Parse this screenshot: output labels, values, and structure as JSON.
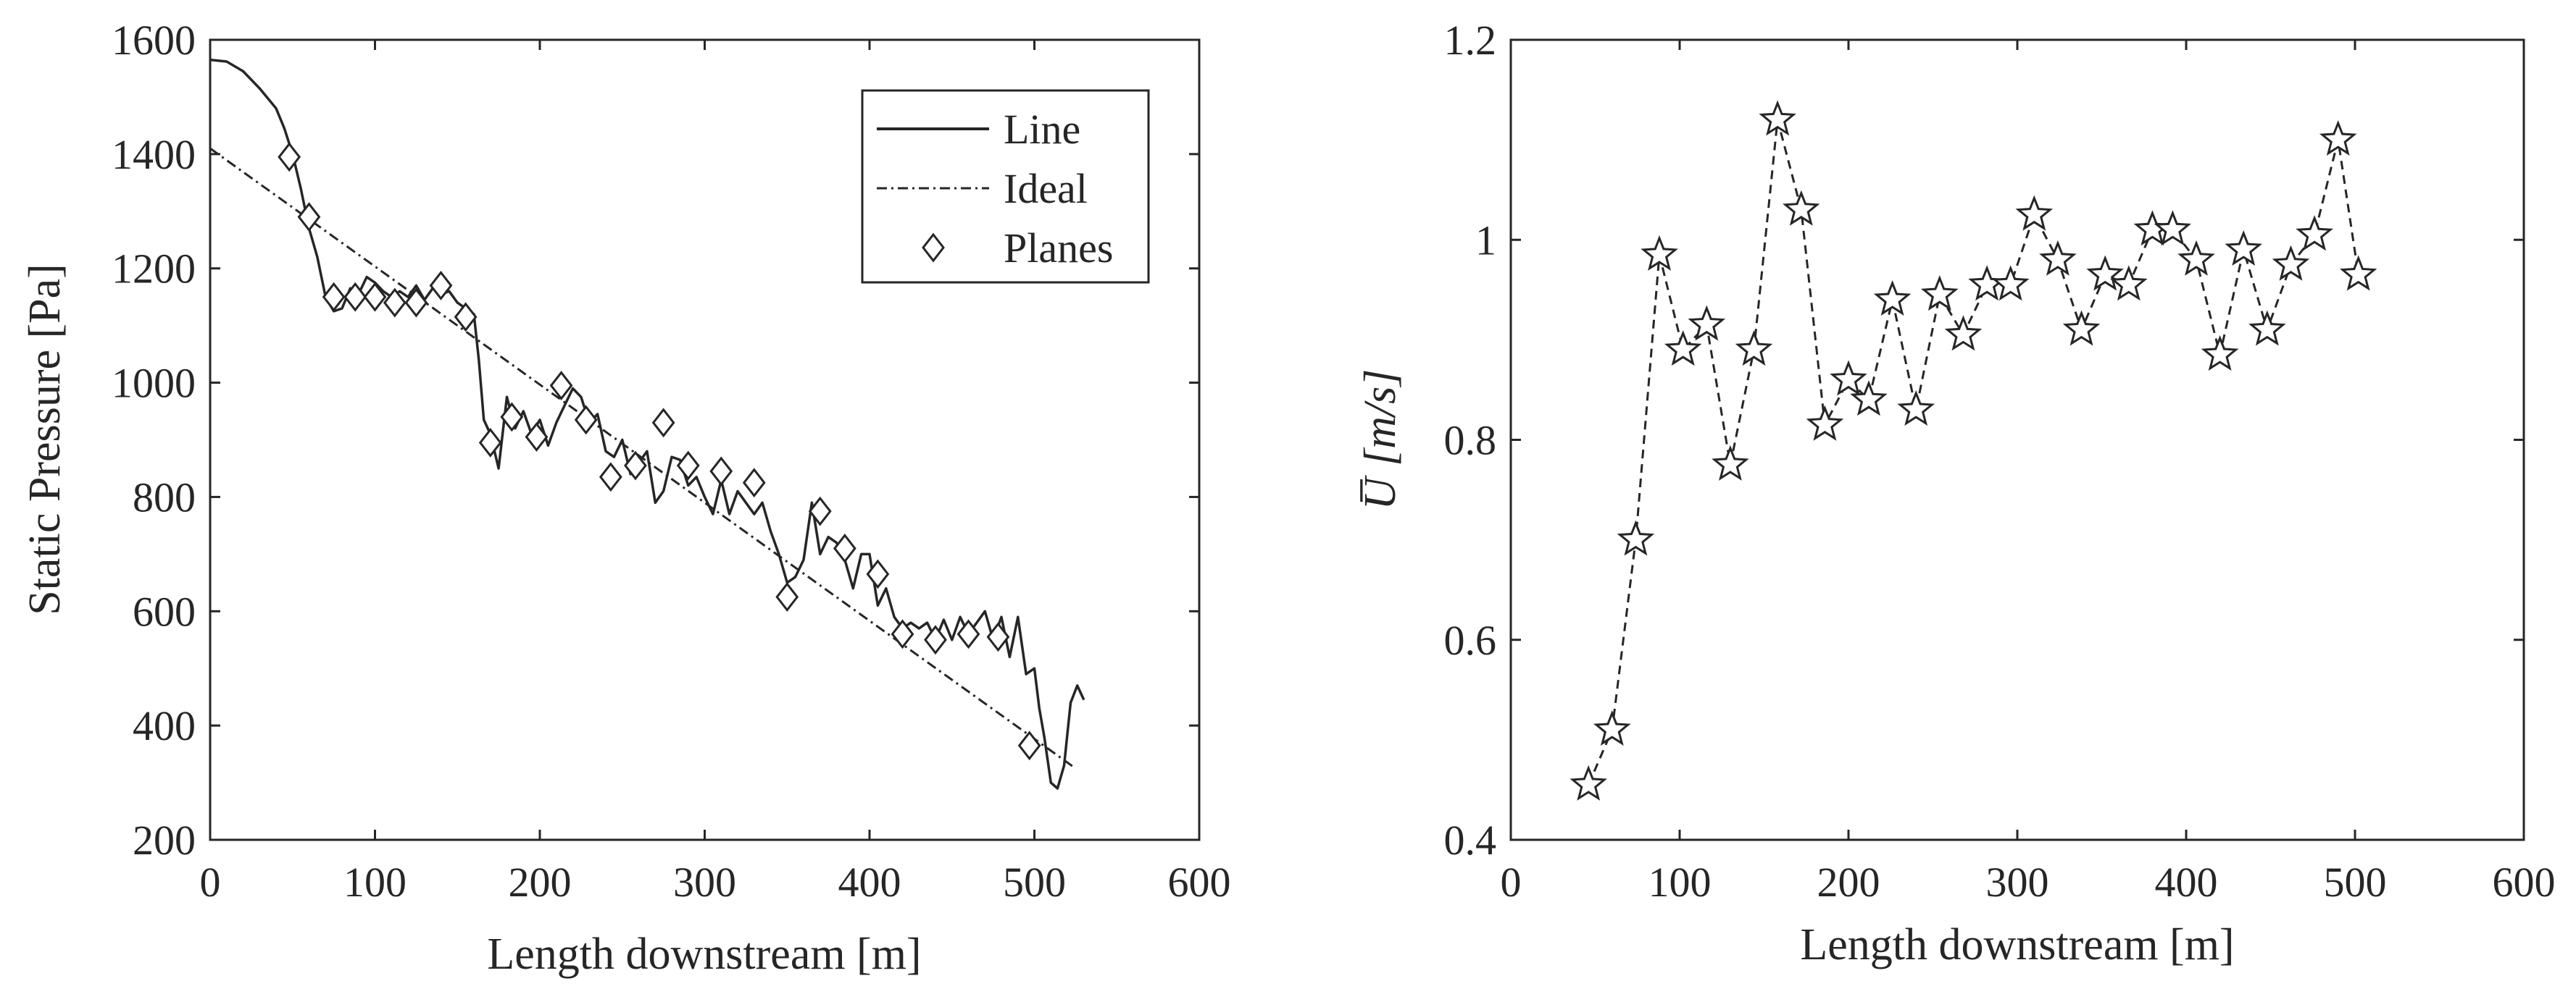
{
  "chart_data": [
    {
      "type": "line",
      "title": "",
      "xlabel": "Length downstream [m]",
      "ylabel": "Static Pressure [Pa]",
      "xlim": [
        0,
        600
      ],
      "ylim": [
        200,
        1600
      ],
      "xticks": [
        0,
        100,
        200,
        300,
        400,
        500,
        600
      ],
      "yticks": [
        200,
        400,
        600,
        800,
        1000,
        1200,
        1400,
        1600
      ],
      "grid": false,
      "legend_position": "top-right",
      "series": [
        {
          "name": "Line",
          "style": "solid",
          "x": [
            0,
            10,
            20,
            30,
            40,
            45,
            50,
            55,
            60,
            65,
            70,
            75,
            80,
            85,
            90,
            95,
            100,
            105,
            110,
            115,
            120,
            125,
            130,
            135,
            140,
            145,
            150,
            155,
            160,
            163,
            166,
            170,
            175,
            180,
            185,
            190,
            195,
            200,
            205,
            210,
            215,
            220,
            225,
            230,
            235,
            240,
            245,
            250,
            255,
            260,
            265,
            270,
            275,
            280,
            285,
            290,
            295,
            300,
            305,
            310,
            315,
            320,
            325,
            330,
            335,
            340,
            345,
            350,
            355,
            360,
            365,
            370,
            375,
            380,
            385,
            390,
            395,
            400,
            405,
            410,
            415,
            420,
            425,
            430,
            435,
            440,
            445,
            450,
            455,
            460,
            465,
            470,
            475,
            480,
            485,
            490,
            495,
            500,
            503,
            506,
            510,
            514,
            518,
            522,
            526,
            530
          ],
          "y": [
            1565,
            1562,
            1545,
            1515,
            1480,
            1445,
            1400,
            1340,
            1270,
            1220,
            1150,
            1125,
            1130,
            1165,
            1155,
            1185,
            1175,
            1160,
            1150,
            1160,
            1150,
            1170,
            1145,
            1165,
            1155,
            1160,
            1140,
            1130,
            1120,
            1040,
            935,
            910,
            850,
            975,
            920,
            950,
            910,
            935,
            890,
            930,
            960,
            990,
            975,
            930,
            945,
            880,
            870,
            900,
            840,
            860,
            880,
            790,
            810,
            870,
            865,
            820,
            835,
            800,
            770,
            830,
            770,
            810,
            790,
            770,
            790,
            740,
            700,
            650,
            660,
            690,
            790,
            700,
            730,
            720,
            690,
            640,
            700,
            700,
            610,
            640,
            590,
            570,
            580,
            570,
            580,
            550,
            585,
            550,
            590,
            560,
            580,
            600,
            550,
            590,
            520,
            590,
            490,
            500,
            430,
            380,
            300,
            290,
            330,
            440,
            470,
            445
          ]
        },
        {
          "name": "Ideal",
          "style": "dash-dot",
          "x": [
            0,
            525
          ],
          "y": [
            1410,
            325
          ]
        },
        {
          "name": "Planes",
          "style": "marker-diamond",
          "x": [
            48,
            60,
            75,
            88,
            100,
            112,
            125,
            140,
            155,
            170,
            183,
            198,
            213,
            228,
            243,
            258,
            275,
            290,
            310,
            330,
            350,
            370,
            385,
            405,
            420,
            440,
            460,
            478,
            497
          ],
          "y": [
            1395,
            1290,
            1150,
            1150,
            1150,
            1140,
            1140,
            1170,
            1115,
            895,
            940,
            905,
            995,
            935,
            835,
            855,
            930,
            855,
            845,
            825,
            625,
            775,
            710,
            665,
            560,
            550,
            560,
            555,
            365
          ]
        }
      ]
    },
    {
      "type": "line",
      "title": "",
      "xlabel": "Length downstream [m]",
      "ylabel": "U̅ [m/s]",
      "xlim": [
        0,
        600
      ],
      "ylim": [
        0.4,
        1.2
      ],
      "xticks": [
        0,
        100,
        200,
        300,
        400,
        500,
        600
      ],
      "yticks": [
        0.4,
        0.6,
        0.8,
        1,
        1.2
      ],
      "ytick_labels": [
        "0.4",
        "0.6",
        "0.8",
        "1",
        "1.2"
      ],
      "grid": false,
      "series": [
        {
          "style": "dashed-line-star-markers",
          "x": [
            46,
            60,
            74,
            88,
            102,
            116,
            130,
            144,
            158,
            172,
            186,
            200,
            212,
            226,
            240,
            254,
            268,
            282,
            296,
            310,
            324,
            338,
            352,
            366,
            380,
            392,
            406,
            420,
            434,
            448,
            462,
            476,
            490,
            502
          ],
          "y": [
            0.455,
            0.51,
            0.7,
            0.985,
            0.89,
            0.915,
            0.775,
            0.89,
            1.12,
            1.03,
            0.815,
            0.86,
            0.84,
            0.94,
            0.83,
            0.945,
            0.905,
            0.955,
            0.955,
            1.025,
            0.98,
            0.91,
            0.965,
            0.955,
            1.01,
            1.01,
            0.98,
            0.885,
            0.99,
            0.91,
            0.975,
            1.005,
            1.1,
            0.965
          ]
        }
      ]
    }
  ]
}
